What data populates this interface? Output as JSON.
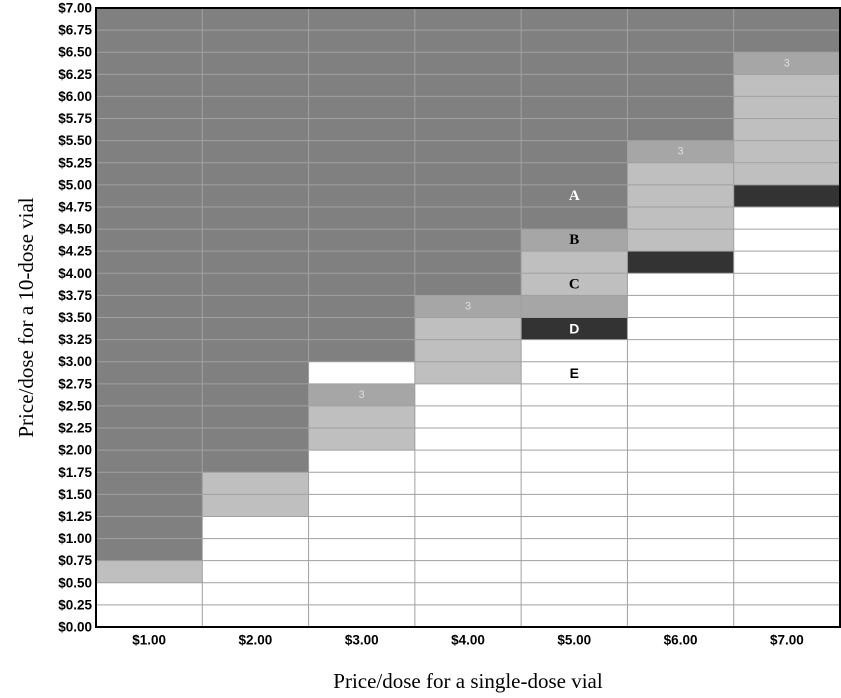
{
  "chart_data": {
    "type": "heatmap",
    "xlabel": "Price/dose for a single-dose vial",
    "ylabel": "Price/dose for a 10-dose vial",
    "x_ticks": [
      "$1.00",
      "$2.00",
      "$3.00",
      "$4.00",
      "$5.00",
      "$6.00",
      "$7.00"
    ],
    "y_ticks": [
      "$0.00",
      "$0.25",
      "$0.50",
      "$0.75",
      "$1.00",
      "$1.25",
      "$1.50",
      "$1.75",
      "$2.00",
      "$2.25",
      "$2.50",
      "$2.75",
      "$3.00",
      "$3.25",
      "$3.50",
      "$3.75",
      "$4.00",
      "$4.25",
      "$4.50",
      "$4.75",
      "$5.00",
      "$5.25",
      "$5.50",
      "$5.75",
      "$6.00",
      "$6.25",
      "$6.50",
      "$6.75",
      "$7.00"
    ],
    "row_values": [
      0.25,
      0.5,
      0.75,
      1.0,
      1.25,
      1.5,
      1.75,
      2.0,
      2.25,
      2.5,
      2.75,
      3.0,
      3.25,
      3.5,
      3.75,
      4.0,
      4.25,
      4.5,
      4.75,
      5.0,
      5.25,
      5.5,
      5.75,
      6.0,
      6.25,
      6.5,
      6.75,
      7.0
    ],
    "columns": [
      {
        "x": 1.0,
        "mid_gray": [
          0.75
        ],
        "black": []
      },
      {
        "x": 2.0,
        "mid_gray": [
          1.5,
          1.75
        ],
        "black": []
      },
      {
        "x": 3.0,
        "mid_gray": [
          2.25,
          2.5,
          2.75
        ],
        "black": []
      },
      {
        "x": 4.0,
        "mid_gray": [
          3.0,
          3.25,
          3.5,
          3.75
        ],
        "black": []
      },
      {
        "x": 5.0,
        "mid_gray": [
          3.75,
          4.0,
          4.25,
          4.5
        ],
        "black": [
          3.5
        ]
      },
      {
        "x": 6.0,
        "mid_gray": [
          4.5,
          4.75,
          5.0,
          5.25,
          5.5
        ],
        "black": [
          4.25
        ]
      },
      {
        "x": 7.0,
        "mid_gray": [
          5.25,
          5.5,
          5.75,
          6.0,
          6.25,
          6.5
        ],
        "black": [
          5.0
        ]
      }
    ],
    "dark_gray_from_row_value": [
      1.0,
      2.0,
      3.25,
      4.0,
      4.75,
      5.75,
      6.75
    ],
    "medium_gray_cells": [
      {
        "x": 3.0,
        "y": 2.75
      },
      {
        "x": 4.0,
        "y": 3.75
      },
      {
        "x": 5.0,
        "y": 3.75
      },
      {
        "x": 5.0,
        "y": 4.5
      },
      {
        "x": 6.0,
        "y": 5.5
      },
      {
        "x": 7.0,
        "y": 6.5
      }
    ],
    "cell_labels": [
      {
        "text": "A",
        "x": 5.0,
        "y": 5.0,
        "style": "serif",
        "color": "#ffffff"
      },
      {
        "text": "B",
        "x": 5.0,
        "y": 4.5,
        "style": "serif",
        "color": "#000000"
      },
      {
        "text": "C",
        "x": 5.0,
        "y": 4.0,
        "style": "serif",
        "color": "#000000"
      },
      {
        "text": "D",
        "x": 5.0,
        "y": 3.5,
        "style": "sans",
        "color": "#ffffff"
      },
      {
        "text": "E",
        "x": 5.0,
        "y": 3.0,
        "style": "sans",
        "color": "#000000"
      },
      {
        "text": "3",
        "x": 3.0,
        "y": 2.75,
        "style": "faint",
        "color": "#dddddd"
      },
      {
        "text": "3",
        "x": 4.0,
        "y": 3.75,
        "style": "faint",
        "color": "#dddddd"
      },
      {
        "text": "3",
        "x": 6.0,
        "y": 5.5,
        "style": "faint",
        "color": "#dddddd"
      },
      {
        "text": "3",
        "x": 7.0,
        "y": 6.5,
        "style": "faint",
        "color": "#dddddd"
      }
    ],
    "colors": {
      "dark_gray": "#808080",
      "medium_gray": "#a6a6a6",
      "light_gray": "#bfbfbf",
      "black": "#333333",
      "white": "#ffffff",
      "grid_line": "#a0a0a0"
    },
    "grid": true
  }
}
